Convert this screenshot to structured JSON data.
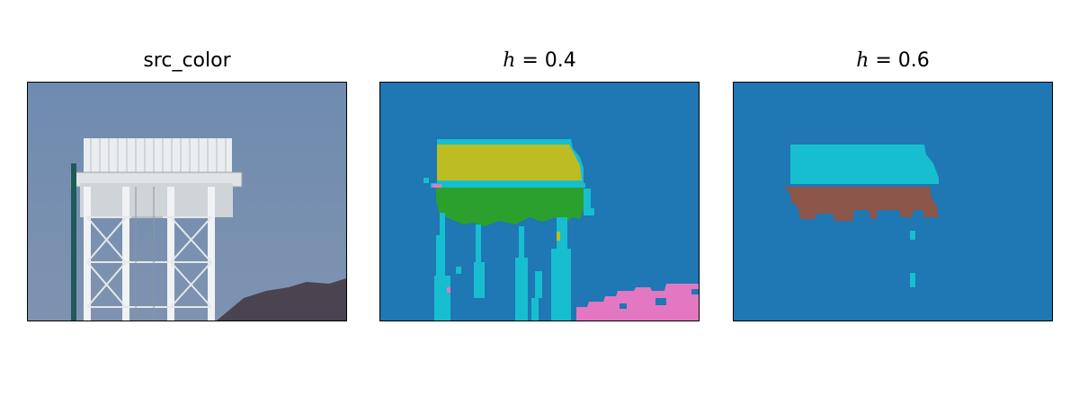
{
  "panels": [
    {
      "title": "src_color"
    },
    {
      "title_var": "h",
      "title_rest": " = 0.4"
    },
    {
      "title_var": "h",
      "title_rest": " = 0.6"
    }
  ],
  "colors": {
    "sky": "#6e86a8",
    "tower": "#e8ecee",
    "mountain": "#4a4350",
    "seg_blue": "#1f77b4",
    "seg_cyan": "#17becf",
    "seg_olive": "#bcbd22",
    "seg_green": "#2ca02c",
    "seg_pink": "#e377c2",
    "seg_brown": "#8c564b"
  }
}
